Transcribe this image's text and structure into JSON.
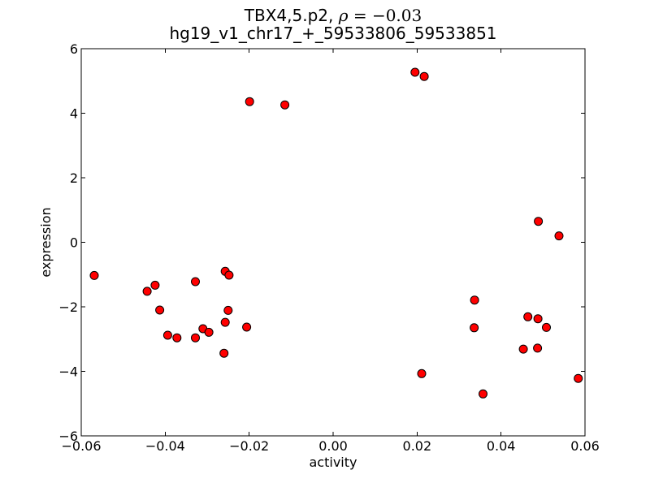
{
  "chart_data": {
    "type": "scatter",
    "title_main": "TBX4,5.p2, ",
    "title_rho": "ρ",
    "title_eq": " = −0.03",
    "subtitle": "hg19_v1_chr17_+_59533806_59533851",
    "xlabel": "activity",
    "ylabel": "expression",
    "xlim": [
      -0.06,
      0.06
    ],
    "ylim": [
      -6,
      6
    ],
    "grid": false,
    "legend": "none",
    "axes_color": "#000000",
    "background_color": "#ffffff",
    "xticks": {
      "values": [
        -0.06,
        -0.04,
        -0.02,
        0.0,
        0.02,
        0.04,
        0.06
      ],
      "labels": [
        "−0.06",
        "−0.04",
        "−0.02",
        "0.00",
        "0.02",
        "0.04",
        "0.06"
      ]
    },
    "yticks": {
      "values": [
        -6,
        -4,
        -2,
        0,
        2,
        4,
        6
      ],
      "labels": [
        "−6",
        "−4",
        "−2",
        "0",
        "2",
        "4",
        "6"
      ]
    },
    "marker": {
      "shape": "circle",
      "fill": "#ff0000",
      "edge": "#000000",
      "radius_px": 5
    },
    "points": [
      [
        -0.0569,
        -1.03
      ],
      [
        -0.0443,
        -1.52
      ],
      [
        -0.0424,
        -1.33
      ],
      [
        -0.0413,
        -2.1
      ],
      [
        -0.0394,
        -2.88
      ],
      [
        -0.0372,
        -2.96
      ],
      [
        -0.0328,
        -1.22
      ],
      [
        -0.0328,
        -2.96
      ],
      [
        -0.031,
        -2.68
      ],
      [
        -0.0296,
        -2.79
      ],
      [
        -0.0257,
        -0.9
      ],
      [
        -0.0248,
        -1.02
      ],
      [
        -0.025,
        -2.11
      ],
      [
        -0.0257,
        -2.48
      ],
      [
        -0.0206,
        -2.63
      ],
      [
        -0.026,
        -3.44
      ],
      [
        -0.0199,
        4.36
      ],
      [
        -0.0115,
        4.26
      ],
      [
        0.0195,
        5.27
      ],
      [
        0.0217,
        5.14
      ],
      [
        0.0489,
        0.65
      ],
      [
        0.0538,
        0.2
      ],
      [
        0.0337,
        -1.79
      ],
      [
        0.0464,
        -2.31
      ],
      [
        0.0488,
        -2.37
      ],
      [
        0.0508,
        -2.64
      ],
      [
        0.0336,
        -2.65
      ],
      [
        0.0453,
        -3.31
      ],
      [
        0.0487,
        -3.28
      ],
      [
        0.0211,
        -4.07
      ],
      [
        0.0357,
        -4.7
      ],
      [
        0.0584,
        -4.22
      ]
    ]
  }
}
